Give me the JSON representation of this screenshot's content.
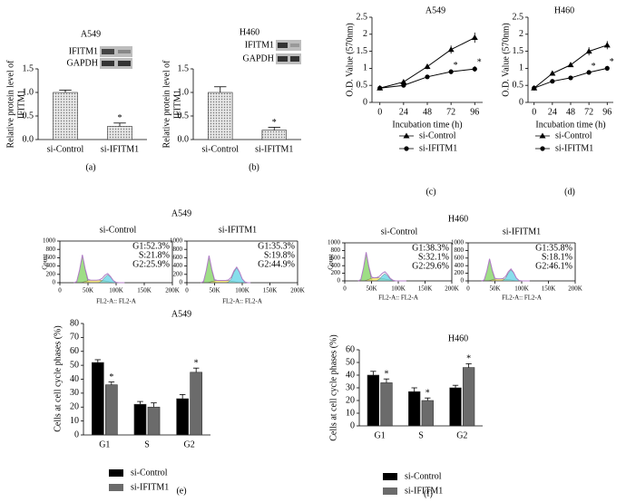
{
  "chart_data": [
    {
      "type": "bar",
      "title": "A549",
      "panel_label": "(a)",
      "blot_labels": [
        "IFITM1",
        "GAPDH"
      ],
      "ylabel": [
        "Relative protein level of",
        "IFITM1"
      ],
      "categories": [
        "si-Control",
        "si-IFITM1"
      ],
      "values": [
        1.0,
        0.28
      ],
      "errors": [
        0.05,
        0.07
      ],
      "annotations": [
        "*"
      ],
      "color": "#d4d4d4",
      "pattern": "dots",
      "ylim": [
        0,
        1.5
      ],
      "yticks": [
        {
          "value": 0,
          "label": "0.0"
        },
        0.5,
        {
          "value": 1,
          "label": "1.0"
        },
        1.5
      ]
    },
    {
      "type": "bar",
      "title": "H460",
      "panel_label": "(b)",
      "blot_labels": [
        "IFITM1",
        "GAPDH"
      ],
      "ylabel": [
        "Relative protein level of",
        "IFITM1"
      ],
      "categories": [
        "si-Control",
        "si-IFITM1"
      ],
      "values": [
        1.0,
        0.2
      ],
      "errors": [
        0.12,
        0.06
      ],
      "annotations": [
        "*"
      ],
      "color": "#d4d4d4",
      "pattern": "dots",
      "ylim": [
        0,
        1.5
      ],
      "yticks": [
        {
          "value": 0,
          "label": "0.0"
        },
        0.5,
        {
          "value": 1,
          "label": "1.0"
        },
        1.5
      ]
    },
    {
      "type": "line",
      "title": "A549",
      "panel_label": "(c)",
      "xlabel": "Incubation time (h)",
      "ylabel": "O.D. Value (570nm)",
      "x": [
        0,
        24,
        48,
        72,
        96
      ],
      "xlim": [
        -8,
        104
      ],
      "xticks": [
        0,
        24,
        48,
        72,
        96
      ],
      "ylim": [
        0,
        2.5
      ],
      "yticks": [
        0,
        0.5,
        1,
        1.5,
        2,
        2.5
      ],
      "series": [
        {
          "name": "si-Control",
          "color": "#000000",
          "marker": "triangle",
          "values": [
            0.42,
            0.6,
            1.05,
            1.55,
            1.9
          ],
          "errors": [
            0.03,
            0.06,
            0.08,
            0.12,
            0.15
          ]
        },
        {
          "name": "si-IFITM1",
          "color": "#000000",
          "marker": "circle",
          "values": [
            0.42,
            0.5,
            0.75,
            0.9,
            0.98
          ],
          "errors": [
            0.03,
            0.04,
            0.06,
            0.07,
            0.08
          ]
        }
      ],
      "annotations": [
        "*",
        "*"
      ]
    },
    {
      "type": "line",
      "title": "H460",
      "panel_label": "(d)",
      "xlabel": "Incubation time (h)",
      "ylabel": "O.D. Value (570nm)",
      "x": [
        0,
        24,
        48,
        72,
        96
      ],
      "xlim": [
        -8,
        104
      ],
      "xticks": [
        0,
        24,
        48,
        72,
        96
      ],
      "ylim": [
        0,
        2.5
      ],
      "yticks": [
        0,
        0.5,
        1,
        1.5,
        2,
        2.5
      ],
      "series": [
        {
          "name": "si-Control",
          "color": "#000000",
          "marker": "triangle",
          "values": [
            0.42,
            0.85,
            1.1,
            1.5,
            1.68
          ],
          "errors": [
            0.03,
            0.05,
            0.05,
            0.12,
            0.12
          ]
        },
        {
          "name": "si-IFITM1",
          "color": "#000000",
          "marker": "circle",
          "values": [
            0.42,
            0.62,
            0.72,
            0.88,
            1.0
          ],
          "errors": [
            0.03,
            0.04,
            0.05,
            0.06,
            0.07
          ]
        }
      ],
      "annotations": [
        "*",
        "*"
      ]
    },
    {
      "type": "area",
      "group_title": "A549",
      "title": "si-Control",
      "xlabel": "FL2-A:: FL2-A",
      "ylabel": "Count",
      "annotations": [
        "G1:52.3%",
        "S:21.8%",
        "G2:25.9%"
      ],
      "x": [
        25000,
        30000,
        35000,
        40000,
        45000,
        50000,
        55000,
        60000,
        65000,
        70000,
        75000,
        80000,
        85000,
        90000,
        95000,
        100000,
        105000,
        110000,
        115000
      ],
      "xlim": [
        0,
        200000
      ],
      "xticks": [
        0,
        {
          "value": 50000,
          "label": "50K"
        },
        {
          "value": 100000,
          "label": "100K"
        },
        {
          "value": 150000,
          "label": "150K"
        },
        {
          "value": 200000,
          "label": "200K"
        }
      ],
      "ylim": [
        0,
        1000
      ],
      "yticks": [
        0,
        200,
        400,
        600,
        800,
        1000
      ],
      "series": [
        {
          "color": "#7dd35c",
          "fill": true,
          "values": [
            0,
            29,
            302,
            660,
            302,
            29,
            0,
            0,
            0,
            0,
            0,
            0,
            0,
            0,
            0,
            0,
            0,
            0,
            0
          ]
        },
        {
          "color": "#f2e35a",
          "fill": true,
          "values": [
            0,
            0,
            0,
            10,
            30,
            50,
            60,
            60,
            60,
            60,
            55,
            45,
            30,
            15,
            5,
            0,
            0,
            0,
            0
          ]
        },
        {
          "color": "#5fd3e6",
          "fill": true,
          "values": [
            0,
            0,
            0,
            0,
            0,
            0,
            0,
            0,
            0,
            8,
            47,
            134,
            190,
            134,
            47,
            8,
            0,
            0,
            0
          ]
        },
        {
          "color": "#b07cc6",
          "fill": false,
          "values": [
            0,
            29,
            302,
            670,
            332,
            79,
            60,
            60,
            60,
            68,
            102,
            179,
            220,
            149,
            52,
            8,
            0,
            0,
            0
          ]
        }
      ]
    },
    {
      "type": "area",
      "title": "si-IFITM1",
      "xlabel": "FL2-A:: FL2-A",
      "annotations": [
        "G1:35.3%",
        "S:19.8%",
        "G2:44.9%"
      ],
      "x": [
        25000,
        30000,
        35000,
        40000,
        45000,
        50000,
        55000,
        60000,
        65000,
        70000,
        75000,
        80000,
        85000,
        90000,
        95000,
        100000,
        105000,
        110000,
        115000
      ],
      "xlim": [
        0,
        200000
      ],
      "xticks": [
        0,
        {
          "value": 50000,
          "label": "50K"
        },
        {
          "value": 100000,
          "label": "100K"
        },
        {
          "value": 150000,
          "label": "150K"
        },
        {
          "value": 200000,
          "label": "200K"
        }
      ],
      "ylim": [
        0,
        1000
      ],
      "yticks": [
        0,
        200,
        400,
        600,
        800,
        1000
      ],
      "series": [
        {
          "color": "#7dd35c",
          "fill": true,
          "values": [
            0,
            28,
            293,
            640,
            293,
            28,
            0,
            0,
            0,
            0,
            0,
            0,
            0,
            0,
            0,
            0,
            0,
            0,
            0
          ]
        },
        {
          "color": "#f2e35a",
          "fill": true,
          "values": [
            0,
            0,
            0,
            10,
            28,
            45,
            55,
            55,
            55,
            55,
            50,
            40,
            28,
            15,
            5,
            0,
            0,
            0,
            0
          ]
        },
        {
          "color": "#5fd3e6",
          "fill": true,
          "values": [
            0,
            0,
            0,
            0,
            0,
            0,
            0,
            0,
            0,
            0,
            16,
            90,
            254,
            360,
            254,
            90,
            16,
            0,
            0
          ]
        },
        {
          "color": "#b07cc6",
          "fill": false,
          "values": [
            0,
            28,
            293,
            650,
            321,
            73,
            55,
            55,
            55,
            55,
            66,
            130,
            282,
            375,
            259,
            90,
            16,
            0,
            0
          ]
        }
      ]
    },
    {
      "type": "area",
      "group_title": "H460",
      "title": "si-Control",
      "xlabel": "FL2-A:: FL2-A",
      "ylabel": "Count",
      "annotations": [
        "G1:38.3%",
        "S:32.1%",
        "G2:29.6%"
      ],
      "x": [
        25000,
        30000,
        35000,
        40000,
        45000,
        50000,
        55000,
        60000,
        65000,
        70000,
        75000,
        80000,
        85000,
        90000,
        95000,
        100000,
        105000,
        110000,
        115000
      ],
      "xlim": [
        0,
        200000
      ],
      "xticks": [
        0,
        {
          "value": 50000,
          "label": "50K"
        },
        {
          "value": 100000,
          "label": "100K"
        },
        {
          "value": 150000,
          "label": "150K"
        },
        {
          "value": 200000,
          "label": "200K"
        }
      ],
      "ylim": [
        0,
        1000
      ],
      "yticks": [
        0,
        200,
        400,
        600,
        800,
        1000
      ],
      "series": [
        {
          "color": "#7dd35c",
          "fill": true,
          "values": [
            0,
            33,
            339,
            740,
            339,
            33,
            0,
            0,
            0,
            0,
            0,
            0,
            0,
            0,
            0,
            0,
            0,
            0,
            0
          ]
        },
        {
          "color": "#f2e35a",
          "fill": true,
          "values": [
            0,
            0,
            0,
            15,
            40,
            70,
            80,
            80,
            75,
            65,
            50,
            35,
            20,
            10,
            0,
            0,
            0,
            0,
            0
          ]
        },
        {
          "color": "#5fd3e6",
          "fill": true,
          "values": [
            0,
            0,
            0,
            0,
            0,
            0,
            0,
            8,
            47,
            134,
            190,
            134,
            47,
            8,
            0,
            0,
            0,
            0,
            0
          ]
        },
        {
          "color": "#b07cc6",
          "fill": false,
          "values": [
            0,
            33,
            339,
            755,
            379,
            103,
            80,
            88,
            122,
            199,
            240,
            169,
            67,
            18,
            0,
            0,
            0,
            0,
            0
          ]
        }
      ]
    },
    {
      "type": "area",
      "title": "si-IFITM1",
      "xlabel": "FL2-A:: FL2-A",
      "annotations": [
        "G1:35.8%",
        "S:18.1%",
        "G2:46.1%"
      ],
      "x": [
        25000,
        30000,
        35000,
        40000,
        45000,
        50000,
        55000,
        60000,
        65000,
        70000,
        75000,
        80000,
        85000,
        90000,
        95000,
        100000,
        105000,
        110000,
        115000
      ],
      "xlim": [
        0,
        200000
      ],
      "xticks": [
        0,
        {
          "value": 50000,
          "label": "50K"
        },
        {
          "value": 100000,
          "label": "100K"
        },
        {
          "value": 150000,
          "label": "150K"
        },
        {
          "value": 200000,
          "label": "200K"
        }
      ],
      "ylim": [
        0,
        1000
      ],
      "yticks": [
        0,
        200,
        400,
        600,
        800,
        1000
      ],
      "series": [
        {
          "color": "#7dd35c",
          "fill": true,
          "values": [
            0,
            25,
            261,
            570,
            261,
            25,
            0,
            0,
            0,
            0,
            0,
            0,
            0,
            0,
            0,
            0,
            0,
            0,
            0
          ]
        },
        {
          "color": "#f2e35a",
          "fill": true,
          "values": [
            0,
            0,
            0,
            10,
            28,
            45,
            55,
            55,
            50,
            45,
            35,
            25,
            15,
            5,
            0,
            0,
            0,
            0,
            0
          ]
        },
        {
          "color": "#5fd3e6",
          "fill": true,
          "values": [
            0,
            0,
            0,
            0,
            0,
            0,
            0,
            0,
            13,
            72,
            205,
            290,
            205,
            72,
            13,
            0,
            0,
            0,
            0
          ]
        },
        {
          "color": "#b07cc6",
          "fill": false,
          "values": [
            0,
            25,
            261,
            580,
            289,
            70,
            55,
            55,
            63,
            117,
            240,
            315,
            220,
            77,
            13,
            0,
            0,
            0,
            0
          ]
        }
      ]
    },
    {
      "type": "bar",
      "title": "A549",
      "panel_label": "(e)",
      "ylabel": "Cells at cell cycle phases (%)",
      "categories": [
        "G1",
        "S",
        "G2"
      ],
      "ylim": [
        0,
        80
      ],
      "yticks": [
        0,
        10,
        20,
        30,
        40,
        50,
        60,
        70,
        80
      ],
      "series": [
        {
          "name": "si-Control",
          "color": "#000000",
          "values": [
            52,
            22,
            26
          ],
          "errors": [
            2,
            2,
            3
          ]
        },
        {
          "name": "si-IFITM1",
          "color": "#6b6b6b",
          "values": [
            36,
            20,
            45
          ],
          "errors": [
            2,
            3,
            3
          ]
        }
      ],
      "annotations": [
        "*",
        "*"
      ]
    },
    {
      "type": "bar",
      "title": "H460",
      "panel_label": "(f)",
      "ylabel": "Cells at cell cycle phases (%)",
      "categories": [
        "G1",
        "S",
        "G2"
      ],
      "ylim": [
        0,
        60
      ],
      "yticks": [
        0,
        10,
        20,
        30,
        40,
        50,
        60
      ],
      "series": [
        {
          "name": "si-Control",
          "color": "#000000",
          "values": [
            40,
            27,
            30
          ],
          "errors": [
            3,
            3,
            2
          ]
        },
        {
          "name": "si-IFITM1",
          "color": "#6b6b6b",
          "values": [
            34,
            20,
            46
          ],
          "errors": [
            3,
            2,
            3
          ]
        }
      ],
      "annotations": [
        "*",
        "*",
        "*"
      ]
    }
  ]
}
